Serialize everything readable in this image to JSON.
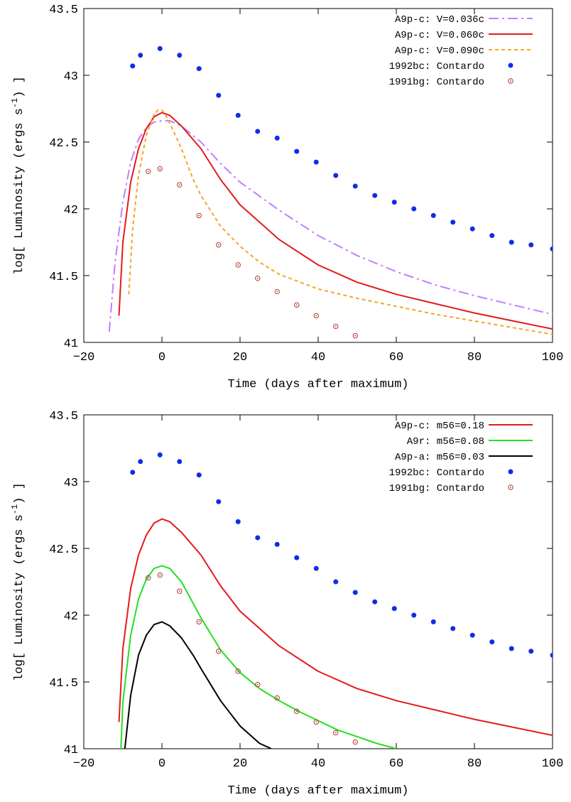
{
  "chart_data": [
    {
      "type": "line",
      "xlabel": "Time (days after maximum)",
      "ylabel_main": "log[ Luminosity (ergs s",
      "ylabel_sup": "-1",
      "ylabel_tail": ") ]",
      "xlim": [
        -20,
        100
      ],
      "ylim": [
        41,
        43.5
      ],
      "xticks": [
        "−20",
        "0",
        "20",
        "40",
        "60",
        "80",
        "100"
      ],
      "xtick_values": [
        -20,
        0,
        20,
        40,
        60,
        80,
        100
      ],
      "yticks": [
        "41",
        "41.5",
        "42",
        "42.5",
        "43",
        "43.5"
      ],
      "ytick_values": [
        41,
        41.5,
        42,
        42.5,
        43,
        43.5
      ],
      "legend_position": "top-right",
      "grid": false,
      "series": [
        {
          "name": "A9p-c: V=0.036c",
          "kind": "line",
          "color": "#bf80ff",
          "dash": "dashdot",
          "x": [
            -13.5,
            -12,
            -10,
            -8,
            -6,
            -4,
            -2,
            0,
            2,
            5,
            10,
            15,
            20,
            30,
            40,
            50,
            60,
            70,
            80,
            90,
            100
          ],
          "y": [
            41.08,
            41.6,
            42.05,
            42.35,
            42.52,
            42.61,
            42.65,
            42.66,
            42.66,
            42.62,
            42.5,
            42.34,
            42.2,
            41.99,
            41.8,
            41.65,
            41.53,
            41.43,
            41.35,
            41.28,
            41.21
          ]
        },
        {
          "name": "A9p-c: V=0.060c",
          "kind": "line",
          "color": "#e41a1c",
          "dash": "solid",
          "x": [
            -11,
            -10,
            -8,
            -6,
            -4,
            -2,
            0,
            2,
            5,
            10,
            15,
            20,
            30,
            40,
            50,
            60,
            70,
            80,
            90,
            100
          ],
          "y": [
            41.2,
            41.75,
            42.2,
            42.45,
            42.6,
            42.69,
            42.72,
            42.7,
            42.62,
            42.45,
            42.22,
            42.03,
            41.77,
            41.58,
            41.45,
            41.36,
            41.29,
            41.22,
            41.16,
            41.1
          ]
        },
        {
          "name": "A9p-c: V=0.090c",
          "kind": "line",
          "color": "#f5a623",
          "dash": "dashed",
          "x": [
            -8.5,
            -7.5,
            -6,
            -4,
            -2,
            -1,
            0,
            1,
            3,
            5,
            8,
            10,
            15,
            20,
            25,
            30,
            40,
            50,
            60,
            70,
            80,
            90,
            100
          ],
          "y": [
            41.36,
            41.85,
            42.25,
            42.55,
            42.71,
            42.74,
            42.74,
            42.7,
            42.58,
            42.45,
            42.22,
            42.1,
            41.87,
            41.72,
            41.6,
            41.51,
            41.4,
            41.33,
            41.27,
            41.21,
            41.16,
            41.11,
            41.06
          ]
        },
        {
          "name": "1992bc: Contardo",
          "kind": "points",
          "color": "#0d2ee8",
          "marker": "filled",
          "x": [
            -7.5,
            -5.5,
            -0.5,
            4.5,
            9.5,
            14.5,
            19.5,
            24.5,
            29.5,
            34.5,
            39.5,
            44.5,
            49.5,
            54.5,
            59.5,
            64.5,
            69.5,
            74.5,
            79.5,
            84.5,
            89.5,
            94.5,
            100
          ],
          "y": [
            43.07,
            43.15,
            43.2,
            43.15,
            43.05,
            42.85,
            42.7,
            42.58,
            42.53,
            42.43,
            42.35,
            42.25,
            42.17,
            42.1,
            42.05,
            42.0,
            41.95,
            41.9,
            41.85,
            41.8,
            41.75,
            41.73,
            41.7
          ]
        },
        {
          "name": "1991bg: Contardo",
          "kind": "points",
          "color": "#b03a2e",
          "marker": "open",
          "x": [
            -3.5,
            -0.5,
            4.5,
            9.5,
            14.5,
            19.5,
            24.5,
            29.5,
            34.5,
            39.5,
            44.5,
            49.5
          ],
          "y": [
            42.28,
            42.3,
            42.18,
            41.95,
            41.73,
            41.58,
            41.48,
            41.38,
            41.28,
            41.2,
            41.12,
            41.05
          ]
        }
      ]
    },
    {
      "type": "line",
      "xlabel": "Time (days after maximum)",
      "ylabel_main": "log[ Luminosity (ergs s",
      "ylabel_sup": "-1",
      "ylabel_tail": ") ]",
      "xlim": [
        -20,
        100
      ],
      "ylim": [
        41,
        43.5
      ],
      "xticks": [
        "−20",
        "0",
        "20",
        "40",
        "60",
        "80",
        "100"
      ],
      "xtick_values": [
        -20,
        0,
        20,
        40,
        60,
        80,
        100
      ],
      "yticks": [
        "41",
        "41.5",
        "42",
        "42.5",
        "43",
        "43.5"
      ],
      "ytick_values": [
        41,
        41.5,
        42,
        42.5,
        43,
        43.5
      ],
      "legend_position": "top-right",
      "grid": false,
      "series": [
        {
          "name": "A9p-c: m56=0.18",
          "kind": "line",
          "color": "#e41a1c",
          "dash": "solid",
          "x": [
            -11,
            -10,
            -8,
            -6,
            -4,
            -2,
            0,
            2,
            5,
            10,
            15,
            20,
            30,
            40,
            50,
            60,
            70,
            80,
            90,
            100
          ],
          "y": [
            41.2,
            41.75,
            42.2,
            42.45,
            42.6,
            42.69,
            42.72,
            42.7,
            42.62,
            42.45,
            42.22,
            42.03,
            41.77,
            41.58,
            41.45,
            41.36,
            41.29,
            41.22,
            41.16,
            41.1
          ]
        },
        {
          "name": "A9r:   m56=0.08",
          "kind": "line",
          "color": "#22e022",
          "dash": "solid",
          "x": [
            -10.5,
            -10,
            -8,
            -6,
            -4,
            -2,
            0,
            2,
            5,
            10,
            15,
            20,
            25,
            30,
            35,
            40,
            45,
            50,
            55,
            60
          ],
          "y": [
            41.0,
            41.35,
            41.85,
            42.12,
            42.27,
            42.35,
            42.37,
            42.35,
            42.25,
            41.98,
            41.74,
            41.57,
            41.45,
            41.36,
            41.28,
            41.21,
            41.14,
            41.09,
            41.04,
            41.0
          ]
        },
        {
          "name": "A9p-a: m56=0.03",
          "kind": "line",
          "color": "#000000",
          "dash": "solid",
          "x": [
            -9.5,
            -8,
            -6,
            -4,
            -2,
            0,
            2,
            5,
            8,
            10,
            15,
            20,
            25,
            28
          ],
          "y": [
            41.0,
            41.4,
            41.7,
            41.85,
            41.93,
            41.95,
            41.92,
            41.83,
            41.7,
            41.6,
            41.36,
            41.17,
            41.04,
            41.0
          ]
        },
        {
          "name": "1992bc: Contardo",
          "kind": "points",
          "color": "#0d2ee8",
          "marker": "filled",
          "x": [
            -7.5,
            -5.5,
            -0.5,
            4.5,
            9.5,
            14.5,
            19.5,
            24.5,
            29.5,
            34.5,
            39.5,
            44.5,
            49.5,
            54.5,
            59.5,
            64.5,
            69.5,
            74.5,
            79.5,
            84.5,
            89.5,
            94.5,
            100
          ],
          "y": [
            43.07,
            43.15,
            43.2,
            43.15,
            43.05,
            42.85,
            42.7,
            42.58,
            42.53,
            42.43,
            42.35,
            42.25,
            42.17,
            42.1,
            42.05,
            42.0,
            41.95,
            41.9,
            41.85,
            41.8,
            41.75,
            41.73,
            41.7
          ]
        },
        {
          "name": "1991bg: Contardo",
          "kind": "points",
          "color": "#b03a2e",
          "marker": "open",
          "x": [
            -3.5,
            -0.5,
            4.5,
            9.5,
            14.5,
            19.5,
            24.5,
            29.5,
            34.5,
            39.5,
            44.5,
            49.5
          ],
          "y": [
            42.28,
            42.3,
            42.18,
            41.95,
            41.73,
            41.58,
            41.48,
            41.38,
            41.28,
            41.2,
            41.12,
            41.05
          ]
        }
      ]
    }
  ]
}
